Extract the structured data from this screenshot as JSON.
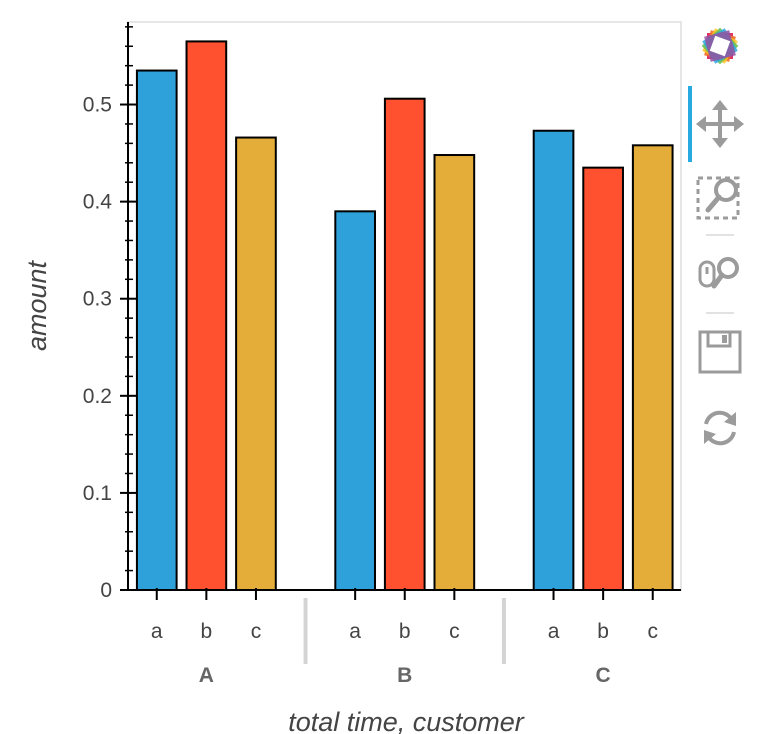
{
  "chart_data": {
    "type": "bar",
    "xlabel": "total  time, customer",
    "ylabel": "amount",
    "ylim": [
      0,
      0.585
    ],
    "yticks": [
      "0",
      "0.1",
      "0.2",
      "0.3",
      "0.4",
      "0.5"
    ],
    "groups": [
      "A",
      "B",
      "C"
    ],
    "categories": [
      "a",
      "b",
      "c"
    ],
    "series_colors": {
      "a": "#2ea1da",
      "b": "#ff5130",
      "c": "#e4ac38"
    },
    "bars": [
      {
        "group": "A",
        "category": "a",
        "value": 0.535
      },
      {
        "group": "A",
        "category": "b",
        "value": 0.565
      },
      {
        "group": "A",
        "category": "c",
        "value": 0.466
      },
      {
        "group": "B",
        "category": "a",
        "value": 0.39
      },
      {
        "group": "B",
        "category": "b",
        "value": 0.506
      },
      {
        "group": "B",
        "category": "c",
        "value": 0.448
      },
      {
        "group": "C",
        "category": "a",
        "value": 0.473
      },
      {
        "group": "C",
        "category": "b",
        "value": 0.435
      },
      {
        "group": "C",
        "category": "c",
        "value": 0.458
      }
    ],
    "grid": false
  },
  "toolbar": {
    "tools": [
      {
        "icon": "bokeh-logo-icon"
      },
      {
        "icon": "pan-icon"
      },
      {
        "icon": "box-zoom-icon"
      },
      {
        "icon": "wheel-zoom-icon"
      },
      {
        "icon": "save-icon"
      },
      {
        "icon": "reset-icon"
      }
    ],
    "active_tool": "pan-icon",
    "accent_color": "#26aae1"
  }
}
